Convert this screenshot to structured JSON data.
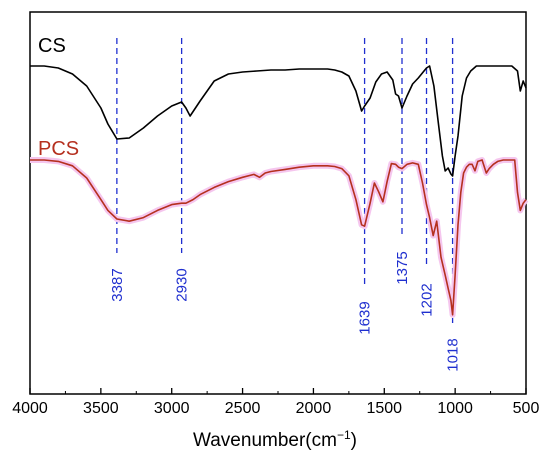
{
  "chart_data": {
    "type": "line",
    "xlabel": "Wavenumber(cm",
    "xlabel_sup": "−1",
    "xlabel_close": ")",
    "xlim": [
      4000,
      500
    ],
    "x_ticks": [
      4000,
      3500,
      3000,
      2500,
      2000,
      1500,
      1000,
      500
    ],
    "y_ticks_shown": false,
    "grid": false,
    "colors": {
      "cs": "#000000",
      "pcs": "#b5301f",
      "pcs_glow": "#f5c6ee",
      "peak_marker": "#1f2fcf"
    },
    "series": [
      {
        "name": "CS",
        "points": [
          [
            4000,
            0.0
          ],
          [
            3900,
            0.0
          ],
          [
            3800,
            0.02
          ],
          [
            3700,
            0.08
          ],
          [
            3600,
            0.2
          ],
          [
            3500,
            0.42
          ],
          [
            3450,
            0.58
          ],
          [
            3387,
            0.73
          ],
          [
            3300,
            0.72
          ],
          [
            3200,
            0.62
          ],
          [
            3100,
            0.5
          ],
          [
            3000,
            0.4
          ],
          [
            2930,
            0.36
          ],
          [
            2900,
            0.42
          ],
          [
            2870,
            0.5
          ],
          [
            2800,
            0.35
          ],
          [
            2700,
            0.15
          ],
          [
            2600,
            0.08
          ],
          [
            2500,
            0.06
          ],
          [
            2400,
            0.05
          ],
          [
            2300,
            0.04
          ],
          [
            2200,
            0.04
          ],
          [
            2100,
            0.03
          ],
          [
            2000,
            0.03
          ],
          [
            1900,
            0.03
          ],
          [
            1850,
            0.04
          ],
          [
            1800,
            0.06
          ],
          [
            1750,
            0.1
          ],
          [
            1700,
            0.25
          ],
          [
            1660,
            0.45
          ],
          [
            1639,
            0.4
          ],
          [
            1600,
            0.32
          ],
          [
            1560,
            0.16
          ],
          [
            1520,
            0.08
          ],
          [
            1480,
            0.06
          ],
          [
            1440,
            0.14
          ],
          [
            1420,
            0.28
          ],
          [
            1400,
            0.3
          ],
          [
            1375,
            0.42
          ],
          [
            1340,
            0.3
          ],
          [
            1300,
            0.18
          ],
          [
            1260,
            0.12
          ],
          [
            1220,
            0.05
          ],
          [
            1202,
            0.02
          ],
          [
            1180,
            0.0
          ],
          [
            1150,
            0.2
          ],
          [
            1120,
            0.55
          ],
          [
            1090,
            0.9
          ],
          [
            1070,
            1.05
          ],
          [
            1050,
            1.02
          ],
          [
            1030,
            1.08
          ],
          [
            1018,
            1.1
          ],
          [
            1000,
            0.9
          ],
          [
            980,
            0.7
          ],
          [
            950,
            0.3
          ],
          [
            920,
            0.12
          ],
          [
            890,
            0.05
          ],
          [
            850,
            0.0
          ],
          [
            800,
            0.0
          ],
          [
            750,
            0.0
          ],
          [
            700,
            0.0
          ],
          [
            650,
            0.0
          ],
          [
            600,
            0.0
          ],
          [
            560,
            0.05
          ],
          [
            540,
            0.25
          ],
          [
            520,
            0.15
          ],
          [
            500,
            0.22
          ]
        ]
      },
      {
        "name": "PCS",
        "points": [
          [
            4000,
            0.0
          ],
          [
            3900,
            0.0
          ],
          [
            3800,
            0.02
          ],
          [
            3700,
            0.08
          ],
          [
            3600,
            0.25
          ],
          [
            3500,
            0.55
          ],
          [
            3450,
            0.7
          ],
          [
            3387,
            0.82
          ],
          [
            3300,
            0.85
          ],
          [
            3200,
            0.8
          ],
          [
            3100,
            0.7
          ],
          [
            3000,
            0.62
          ],
          [
            2930,
            0.6
          ],
          [
            2900,
            0.6
          ],
          [
            2850,
            0.55
          ],
          [
            2800,
            0.48
          ],
          [
            2700,
            0.38
          ],
          [
            2600,
            0.3
          ],
          [
            2500,
            0.24
          ],
          [
            2420,
            0.2
          ],
          [
            2380,
            0.24
          ],
          [
            2340,
            0.18
          ],
          [
            2300,
            0.16
          ],
          [
            2200,
            0.13
          ],
          [
            2100,
            0.1
          ],
          [
            2000,
            0.08
          ],
          [
            1900,
            0.08
          ],
          [
            1850,
            0.09
          ],
          [
            1800,
            0.12
          ],
          [
            1750,
            0.22
          ],
          [
            1700,
            0.55
          ],
          [
            1660,
            0.9
          ],
          [
            1639,
            0.92
          ],
          [
            1600,
            0.6
          ],
          [
            1570,
            0.32
          ],
          [
            1540,
            0.44
          ],
          [
            1510,
            0.58
          ],
          [
            1480,
            0.3
          ],
          [
            1450,
            0.05
          ],
          [
            1420,
            0.06
          ],
          [
            1400,
            0.1
          ],
          [
            1375,
            0.12
          ],
          [
            1340,
            0.06
          ],
          [
            1300,
            0.04
          ],
          [
            1260,
            0.06
          ],
          [
            1230,
            0.32
          ],
          [
            1202,
            0.62
          ],
          [
            1180,
            0.8
          ],
          [
            1155,
            1.05
          ],
          [
            1130,
            0.85
          ],
          [
            1100,
            1.35
          ],
          [
            1070,
            1.6
          ],
          [
            1050,
            1.78
          ],
          [
            1030,
            1.95
          ],
          [
            1018,
            2.15
          ],
          [
            1000,
            1.6
          ],
          [
            980,
            0.9
          ],
          [
            960,
            0.45
          ],
          [
            940,
            0.18
          ],
          [
            920,
            0.1
          ],
          [
            900,
            0.06
          ],
          [
            880,
            0.06
          ],
          [
            860,
            0.15
          ],
          [
            840,
            0.02
          ],
          [
            810,
            0.0
          ],
          [
            780,
            0.18
          ],
          [
            760,
            0.12
          ],
          [
            730,
            0.06
          ],
          [
            700,
            0.02
          ],
          [
            660,
            0.0
          ],
          [
            620,
            0.0
          ],
          [
            580,
            0.0
          ],
          [
            560,
            0.45
          ],
          [
            540,
            0.7
          ],
          [
            520,
            0.6
          ],
          [
            500,
            0.55
          ]
        ]
      }
    ],
    "peaks": [
      {
        "label": "3387",
        "x": 3387
      },
      {
        "label": "2930",
        "x": 2930
      },
      {
        "label": "1639",
        "x": 1639
      },
      {
        "label": "1375",
        "x": 1375
      },
      {
        "label": "1202",
        "x": 1202
      },
      {
        "label": "1018",
        "x": 1018
      }
    ]
  }
}
